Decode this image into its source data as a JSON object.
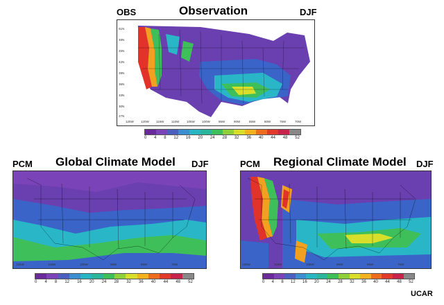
{
  "panels": {
    "obs": {
      "left_label": "OBS",
      "title": "Observation",
      "right_label": "DJF"
    },
    "gcm": {
      "left_label": "PCM",
      "title": "Global Climate Model",
      "right_label": "DJF"
    },
    "rcm": {
      "left_label": "PCM",
      "title": "Regional Climate Model",
      "right_label": "DJF"
    }
  },
  "colorbar": {
    "ticks": [
      "0",
      "4",
      "8",
      "12",
      "16",
      "20",
      "24",
      "28",
      "32",
      "36",
      "40",
      "44",
      "48",
      "52"
    ],
    "colors": [
      "#6a2a9c",
      "#7a44b8",
      "#4a5fbf",
      "#3b8fd0",
      "#29b6c4",
      "#2bb59a",
      "#3fbf5a",
      "#8fcf3a",
      "#d7df2a",
      "#f2b31f",
      "#ee6d1e",
      "#e23a2a",
      "#c8234b",
      "#888888"
    ]
  },
  "obs_lon_labels": [
    "125W",
    "120W",
    "115W",
    "110W",
    "105W",
    "100W",
    "95W",
    "90W",
    "85W",
    "80W",
    "75W",
    "70W"
  ],
  "obs_lat_labels": [
    "51N",
    "48N",
    "45N",
    "42N",
    "39N",
    "36N",
    "33N",
    "30N",
    "27N"
  ],
  "credit": "UCAR",
  "map_colors": {
    "low": "#6a3fb0",
    "mid_blue": "#3a64c8",
    "cyan": "#29b7c8",
    "green": "#3fbf5a",
    "yellow": "#d7df2a",
    "orange": "#f2a01f",
    "red": "#e2332a",
    "ocean_obs": "#ffffff"
  }
}
